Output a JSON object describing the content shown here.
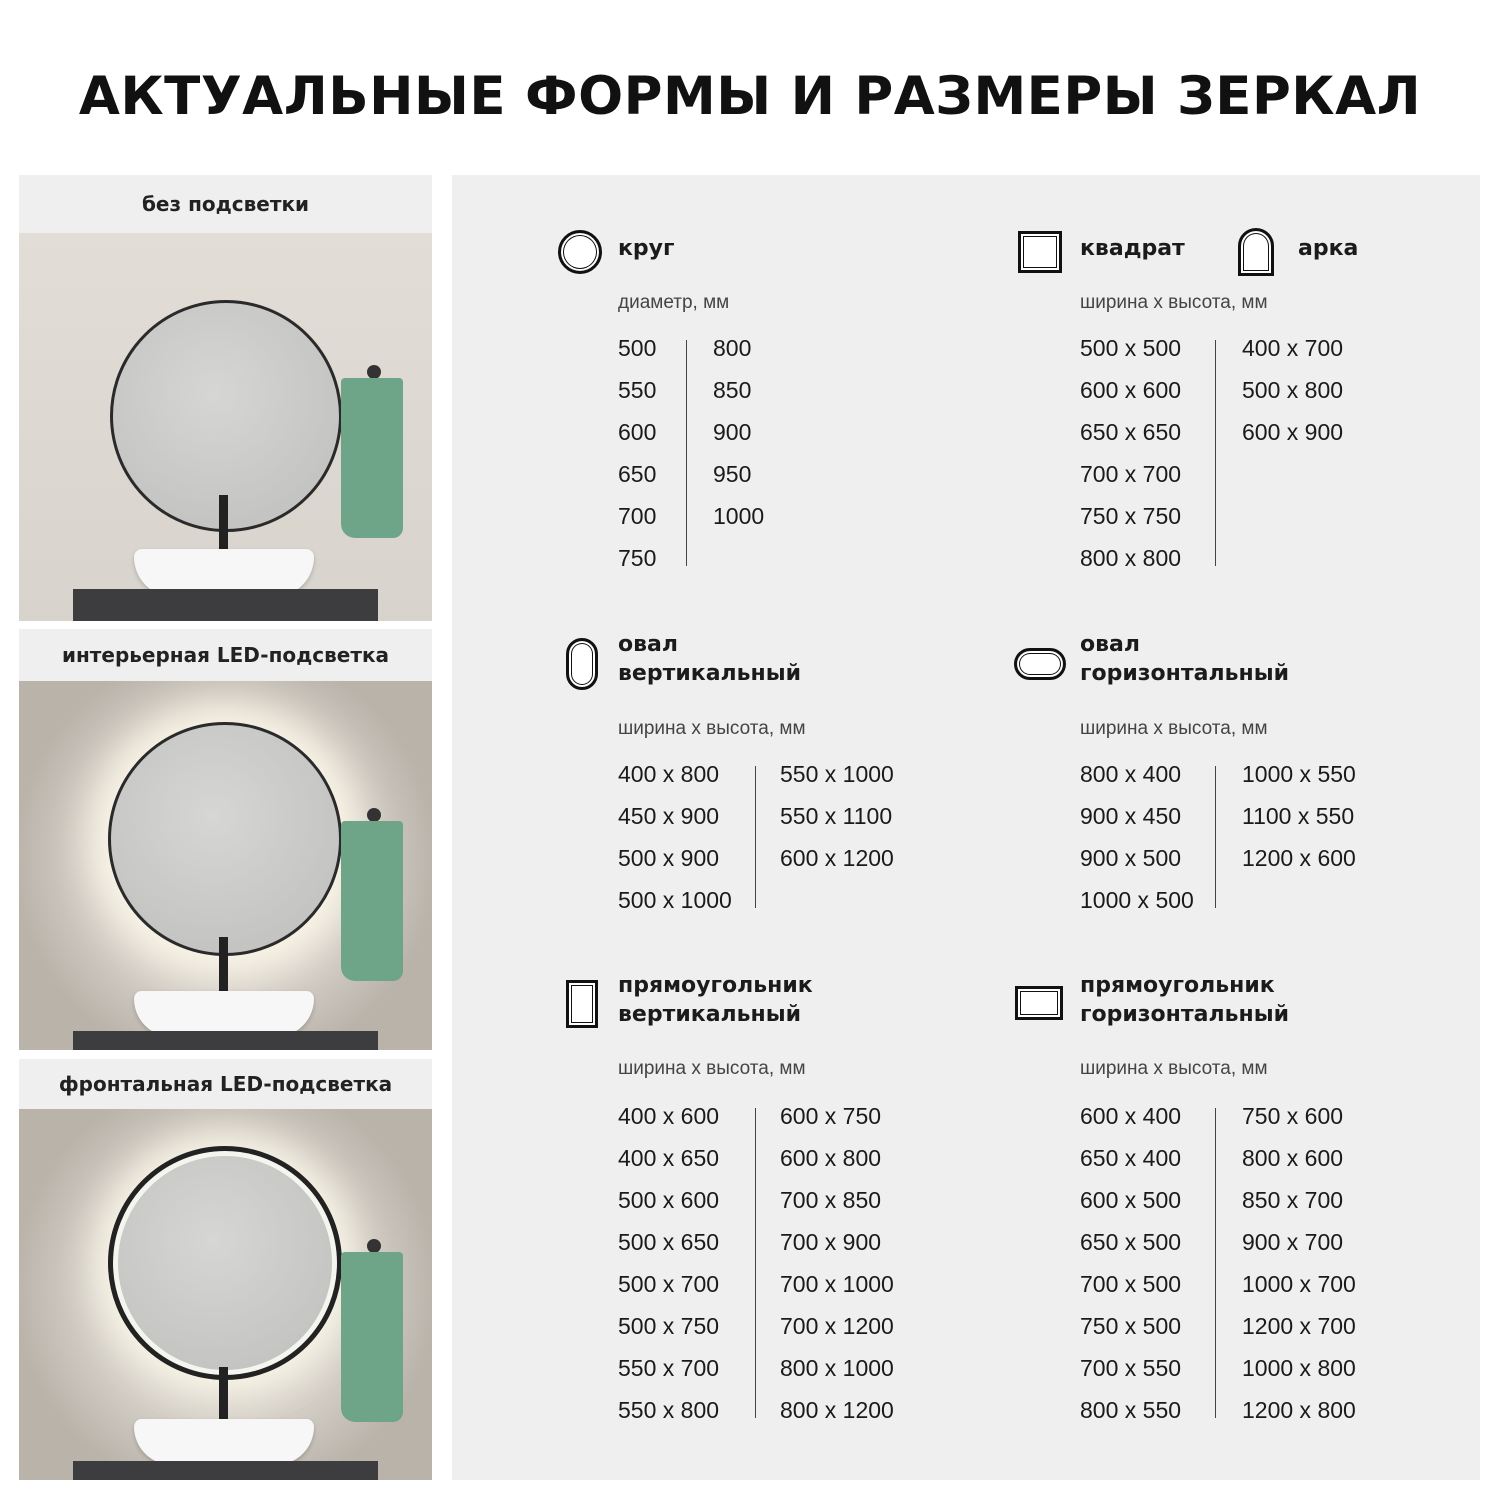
{
  "title": "АКТУАЛЬНЫЕ ФОРМЫ И РАЗМЕРЫ ЗЕРКАЛ",
  "lighting": [
    {
      "label": "без подсветки"
    },
    {
      "label": "интерьерная LED-подсветка"
    },
    {
      "label": "фронтальная LED-подсветка"
    }
  ],
  "sections": [
    {
      "key": "circle",
      "icon": "circle-shape-icon",
      "title": [
        "круг"
      ],
      "subtitle": "диаметр, мм",
      "col1": [
        "500",
        "550",
        "600",
        "650",
        "700",
        "750"
      ],
      "col2": [
        "800",
        "850",
        "900",
        "950",
        "1000"
      ]
    },
    {
      "key": "square",
      "icon": "square-shape-icon",
      "title": [
        "квадрат"
      ],
      "subtitle": "ширина х высота, мм",
      "col1": [
        "500 x 500",
        "600 x 600",
        "650 x 650",
        "700 x 700",
        "750 x 750",
        "800 x 800"
      ],
      "col2": [
        "400 x 700",
        "500 x 800",
        "600 x 900"
      ]
    },
    {
      "key": "arch",
      "icon": "arch-shape-icon",
      "title": [
        "арка"
      ]
    },
    {
      "key": "oval-v",
      "icon": "vertical-oval-shape-icon",
      "title": [
        "овал",
        "вертикальный"
      ],
      "subtitle": "ширина х высота, мм",
      "col1": [
        "400 x 800",
        "450 x 900",
        "500 x 900",
        "500 x 1000"
      ],
      "col2": [
        "550 x 1000",
        "550 x 1100",
        "600 x 1200"
      ]
    },
    {
      "key": "oval-h",
      "icon": "horizontal-oval-shape-icon",
      "title": [
        "овал",
        "горизонтальный"
      ],
      "subtitle": "ширина х высота, мм",
      "col1": [
        "800 x 400",
        "900 x 450",
        "900 x 500",
        "1000 x 500"
      ],
      "col2": [
        "1000 x 550",
        "1100 x 550",
        "1200 x 600"
      ]
    },
    {
      "key": "rect-v",
      "icon": "vertical-rectangle-shape-icon",
      "title": [
        "прямоугольник",
        "вертикальный"
      ],
      "subtitle": "ширина х высота, мм",
      "col1": [
        "400 x 600",
        "400 x 650",
        "500 x 600",
        "500 x 650",
        "500 x 700",
        "500 x 750",
        "550 x 700",
        "550 x 800"
      ],
      "col2": [
        "600 x 750",
        "600 x 800",
        "700 x 850",
        "700 x 900",
        "700 x 1000",
        "700 x 1200",
        "800 x 1000",
        "800 x 1200"
      ]
    },
    {
      "key": "rect-h",
      "icon": "horizontal-rectangle-shape-icon",
      "title": [
        "прямоугольник",
        "горизонтальный"
      ],
      "subtitle": "ширина х высота, мм",
      "col1": [
        "600 x 400",
        "650 x 400",
        "600 x 500",
        "650 x 500",
        "700 x 500",
        "750 x 500",
        "700 x 550",
        "800 x 550"
      ],
      "col2": [
        "750 x 600",
        "800 x 600",
        "850 x 700",
        "900 x 700",
        "1000 x 700",
        "1200 x 700",
        "1000 x 800",
        "1200 x 800"
      ]
    }
  ]
}
